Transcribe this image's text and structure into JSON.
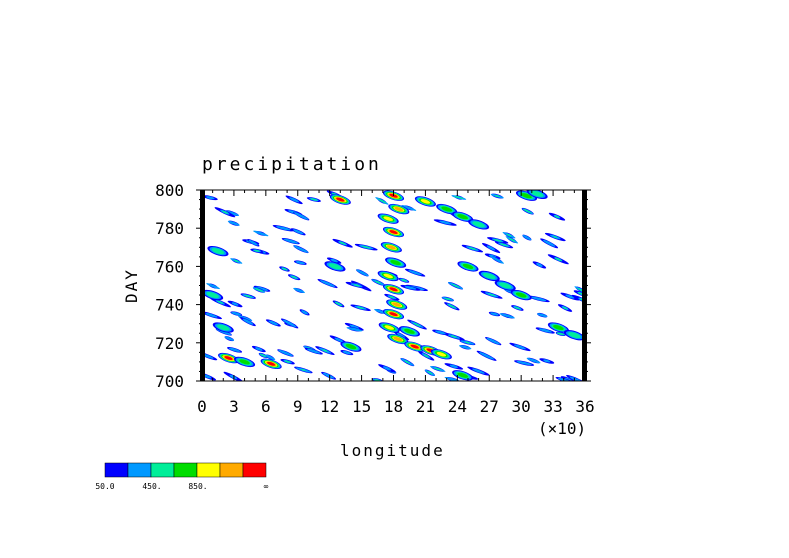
{
  "chart_data": {
    "type": "heatmap",
    "title": "precipitation",
    "xlabel": "longitude",
    "ylabel": "DAY",
    "x_multiplier_label": "(×10)",
    "xlim": [
      0,
      36
    ],
    "ylim": [
      700,
      800
    ],
    "x_ticks": [
      0,
      3,
      6,
      9,
      12,
      15,
      18,
      21,
      24,
      27,
      30,
      33,
      36
    ],
    "x_tick_labels": [
      "0",
      "3",
      "6",
      "9",
      "12",
      "15",
      "18",
      "21",
      "24",
      "27",
      "30",
      "33",
      "36"
    ],
    "y_ticks": [
      700,
      720,
      740,
      760,
      780,
      800
    ],
    "y_tick_labels": [
      "700",
      "720",
      "740",
      "760",
      "780",
      "800"
    ],
    "colorbar": {
      "colors": [
        "#0000ff",
        "#0099ff",
        "#00ee99",
        "#00dd00",
        "#ffff00",
        "#ffaa00",
        "#ff0000"
      ],
      "labels": [
        "50.0",
        "450.",
        "850.",
        "∞"
      ]
    },
    "features": [
      {
        "x": 18,
        "y": 797,
        "level": 6
      },
      {
        "x": 18.5,
        "y": 790,
        "level": 5
      },
      {
        "x": 17.5,
        "y": 785,
        "level": 4
      },
      {
        "x": 18,
        "y": 778,
        "level": 6
      },
      {
        "x": 17.8,
        "y": 770,
        "level": 5
      },
      {
        "x": 18.2,
        "y": 762,
        "level": 3
      },
      {
        "x": 17.5,
        "y": 755,
        "level": 4
      },
      {
        "x": 18,
        "y": 748,
        "level": 6
      },
      {
        "x": 18.3,
        "y": 740,
        "level": 5
      },
      {
        "x": 18,
        "y": 735,
        "level": 6
      },
      {
        "x": 17.6,
        "y": 728,
        "level": 4
      },
      {
        "x": 18.4,
        "y": 722,
        "level": 5
      },
      {
        "x": 20,
        "y": 718,
        "level": 6
      },
      {
        "x": 21.5,
        "y": 716,
        "level": 6
      },
      {
        "x": 22.5,
        "y": 714,
        "level": 4
      },
      {
        "x": 19.5,
        "y": 726,
        "level": 3
      },
      {
        "x": 21,
        "y": 794,
        "level": 4
      },
      {
        "x": 23,
        "y": 790,
        "level": 3
      },
      {
        "x": 24.5,
        "y": 786,
        "level": 3
      },
      {
        "x": 26,
        "y": 782,
        "level": 2
      },
      {
        "x": 30.5,
        "y": 797,
        "level": 3
      },
      {
        "x": 31.5,
        "y": 798,
        "level": 2
      },
      {
        "x": 25,
        "y": 760,
        "level": 3
      },
      {
        "x": 27,
        "y": 755,
        "level": 2
      },
      {
        "x": 28.5,
        "y": 750,
        "level": 2
      },
      {
        "x": 30,
        "y": 745,
        "level": 3
      },
      {
        "x": 33.5,
        "y": 728,
        "level": 3
      },
      {
        "x": 35,
        "y": 724,
        "level": 2
      },
      {
        "x": 2.5,
        "y": 712,
        "level": 6
      },
      {
        "x": 4,
        "y": 710,
        "level": 3
      },
      {
        "x": 6.5,
        "y": 709,
        "level": 6
      },
      {
        "x": 14,
        "y": 718,
        "level": 3
      },
      {
        "x": 1,
        "y": 745,
        "level": 2
      },
      {
        "x": 2,
        "y": 728,
        "level": 2
      },
      {
        "x": 1.5,
        "y": 768,
        "level": 2
      },
      {
        "x": 12.5,
        "y": 760,
        "level": 2
      },
      {
        "x": 24.5,
        "y": 703,
        "level": 3
      },
      {
        "x": 13,
        "y": 795,
        "level": 6
      }
    ]
  }
}
